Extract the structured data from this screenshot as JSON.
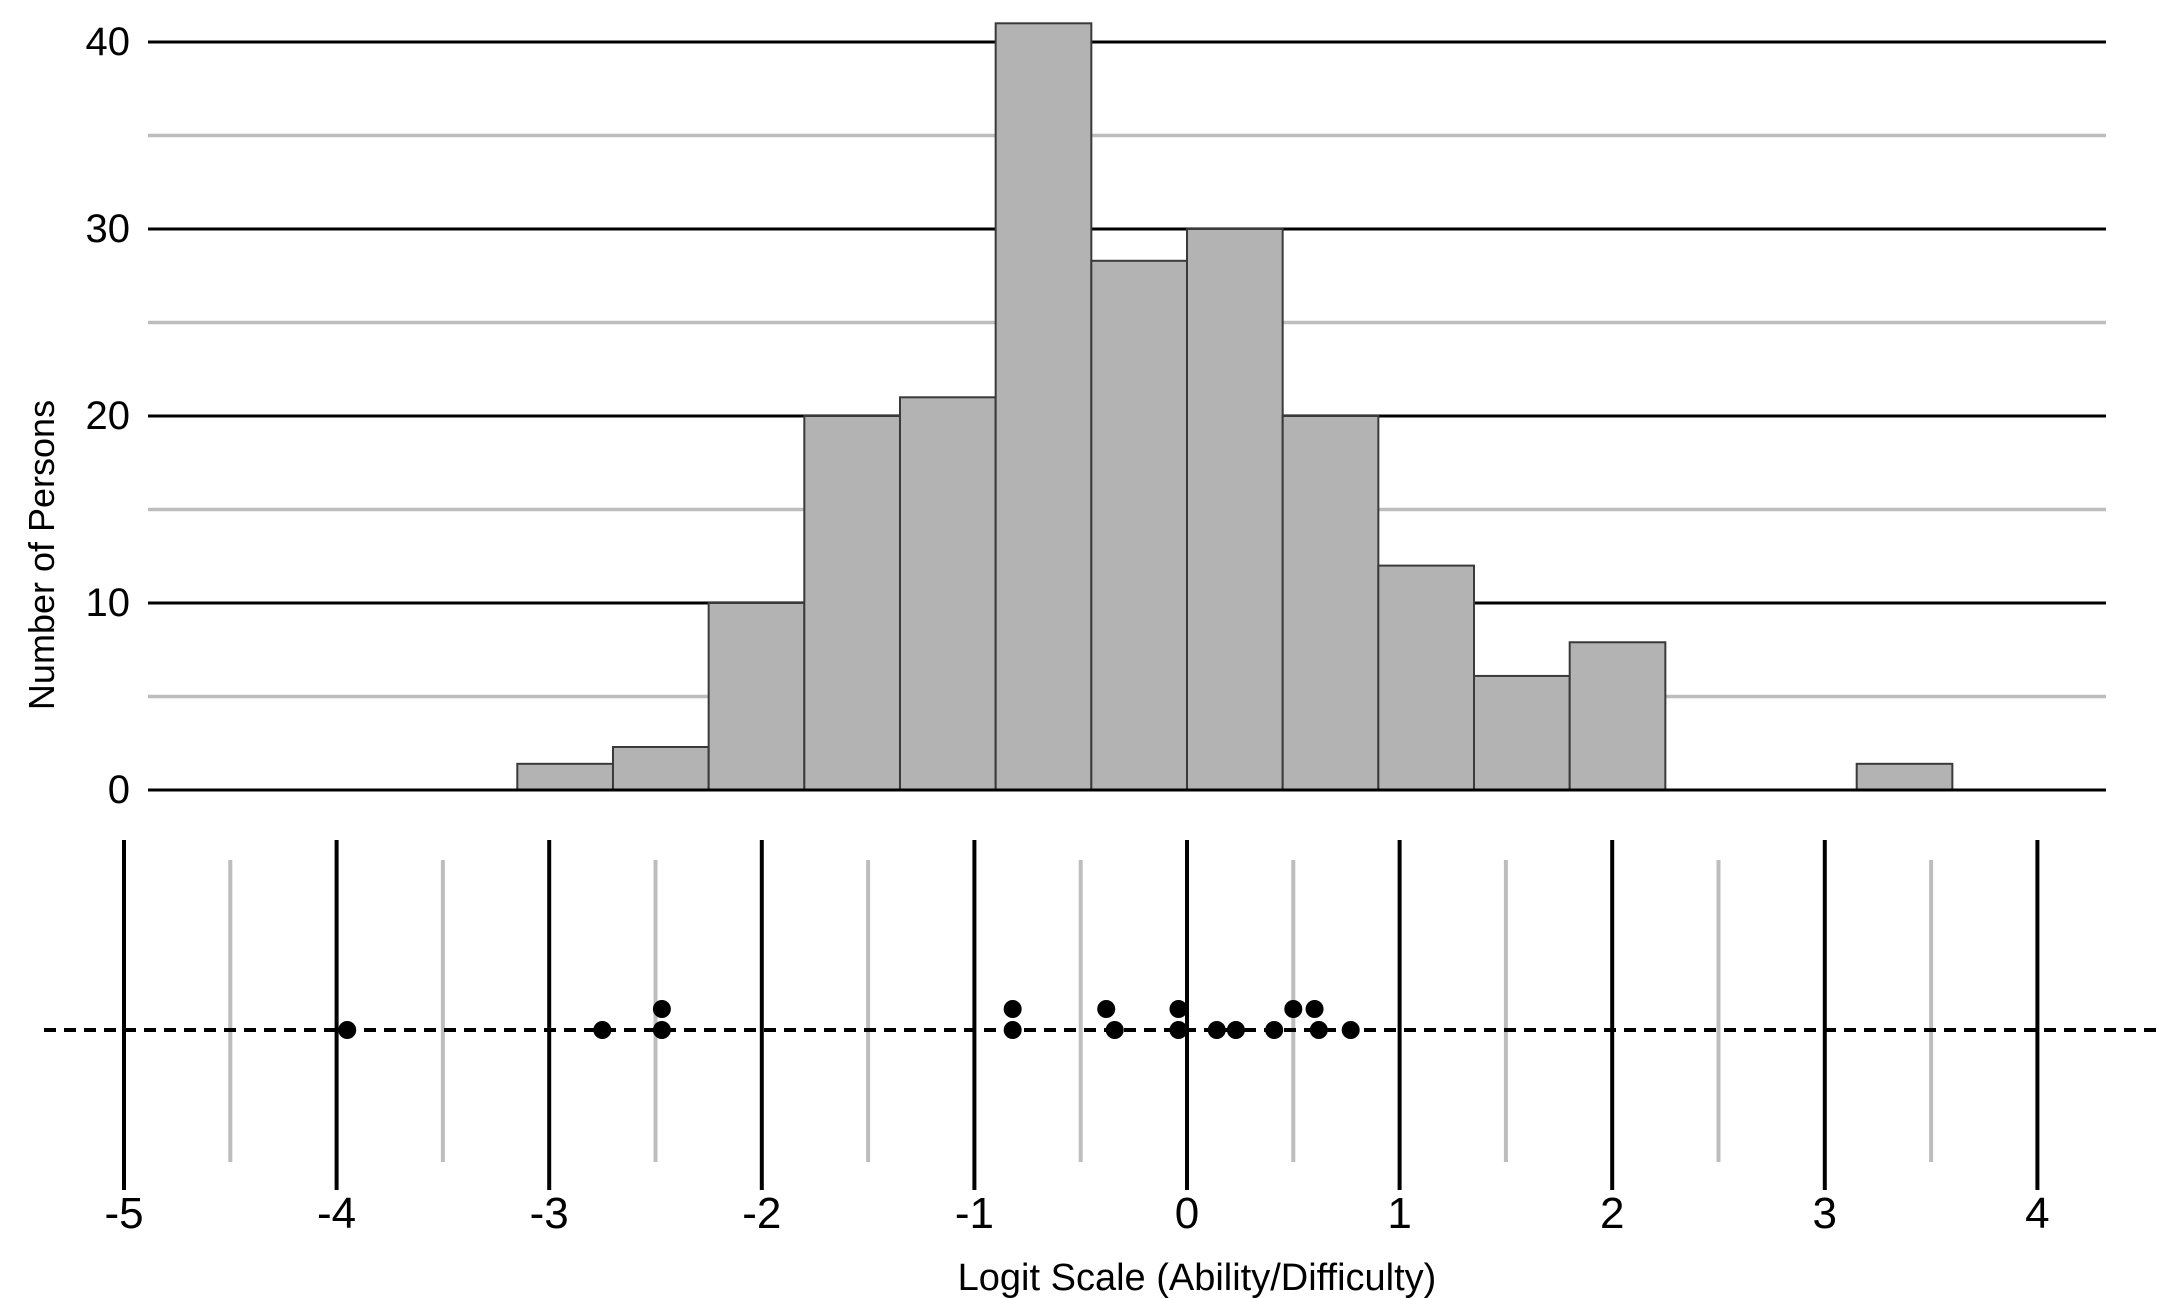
{
  "chart_data": [
    {
      "type": "bar",
      "ylabel": "Number of Persons",
      "ylim": [
        0,
        40
      ],
      "yticks": [
        {
          "value": 0,
          "label": "0"
        },
        {
          "value": 10,
          "label": "10"
        },
        {
          "value": 20,
          "label": "20"
        },
        {
          "value": 30,
          "label": "30"
        },
        {
          "value": 40,
          "label": "40"
        }
      ],
      "grid": true,
      "bins": [
        {
          "from": -3.15,
          "to": -2.7,
          "value": 1.4
        },
        {
          "from": -2.7,
          "to": -2.25,
          "value": 2.3
        },
        {
          "from": -2.25,
          "to": -1.8,
          "value": 10
        },
        {
          "from": -1.8,
          "to": -1.35,
          "value": 20
        },
        {
          "from": -1.35,
          "to": -0.9,
          "value": 21
        },
        {
          "from": -0.9,
          "to": -0.45,
          "value": 41
        },
        {
          "from": -0.45,
          "to": 0.0,
          "value": 28.3
        },
        {
          "from": 0.0,
          "to": 0.45,
          "value": 30
        },
        {
          "from": 0.45,
          "to": 0.9,
          "value": 20
        },
        {
          "from": 0.9,
          "to": 1.35,
          "value": 12
        },
        {
          "from": 1.35,
          "to": 1.8,
          "value": 6.1
        },
        {
          "from": 1.8,
          "to": 2.25,
          "value": 7.9
        },
        {
          "from": 3.15,
          "to": 3.6,
          "value": 1.4
        }
      ]
    },
    {
      "type": "scatter",
      "xlabel": "Logit Scale (Ability/Difficulty)",
      "xlim": [
        -5,
        4
      ],
      "xticks": [
        {
          "value": -5,
          "label": "-5"
        },
        {
          "value": -4,
          "label": "-4"
        },
        {
          "value": -3,
          "label": "-3"
        },
        {
          "value": -2,
          "label": "-2"
        },
        {
          "value": -1,
          "label": "-1"
        },
        {
          "value": 0,
          "label": "0"
        },
        {
          "value": 1,
          "label": "1"
        },
        {
          "value": 2,
          "label": "2"
        },
        {
          "value": 3,
          "label": "3"
        },
        {
          "value": 4,
          "label": "4"
        }
      ],
      "points": [
        {
          "x": -3.95,
          "stack": 0
        },
        {
          "x": -2.75,
          "stack": 0
        },
        {
          "x": -2.47,
          "stack": 0
        },
        {
          "x": -2.47,
          "stack": 1
        },
        {
          "x": -0.82,
          "stack": 0
        },
        {
          "x": -0.82,
          "stack": 1
        },
        {
          "x": -0.34,
          "stack": 0
        },
        {
          "x": -0.38,
          "stack": 1
        },
        {
          "x": -0.04,
          "stack": 0
        },
        {
          "x": -0.04,
          "stack": 1
        },
        {
          "x": 0.14,
          "stack": 0
        },
        {
          "x": 0.23,
          "stack": 0
        },
        {
          "x": 0.41,
          "stack": 0
        },
        {
          "x": 0.5,
          "stack": 1
        },
        {
          "x": 0.6,
          "stack": 1
        },
        {
          "x": 0.62,
          "stack": 0
        },
        {
          "x": 0.77,
          "stack": 0
        }
      ]
    }
  ]
}
